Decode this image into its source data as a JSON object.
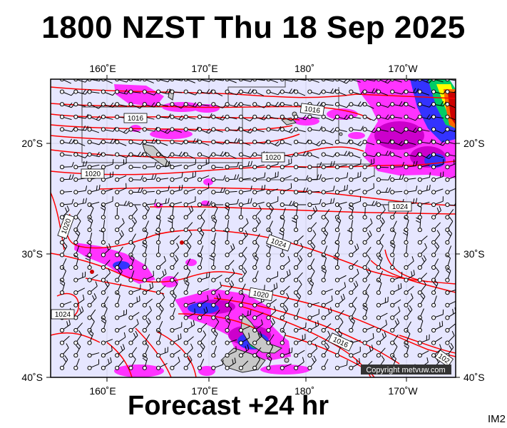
{
  "header": {
    "title": "1800 NZST Thu 18 Sep 2025"
  },
  "footer": {
    "forecast": "Forecast +24 hr",
    "code": "IM2"
  },
  "map": {
    "lon_ticks": [
      "160˚E",
      "170˚E",
      "180˚",
      "170˚W"
    ],
    "lat_ticks": [
      "20˚S",
      "30˚S",
      "40˚S"
    ],
    "isobars": [
      "1016",
      "1016",
      "1020",
      "1020",
      "1024",
      "1024",
      "1020",
      "1024",
      "1016",
      "1020",
      "102"
    ],
    "copyright": "Copyright metvuw.com",
    "colors": {
      "isobar": "#ff0000",
      "ocean": "#e6e6ff",
      "rain_light": "#ff33ff",
      "rain_mid": "#3333ff",
      "rain_heavy": "#ffff00"
    }
  }
}
